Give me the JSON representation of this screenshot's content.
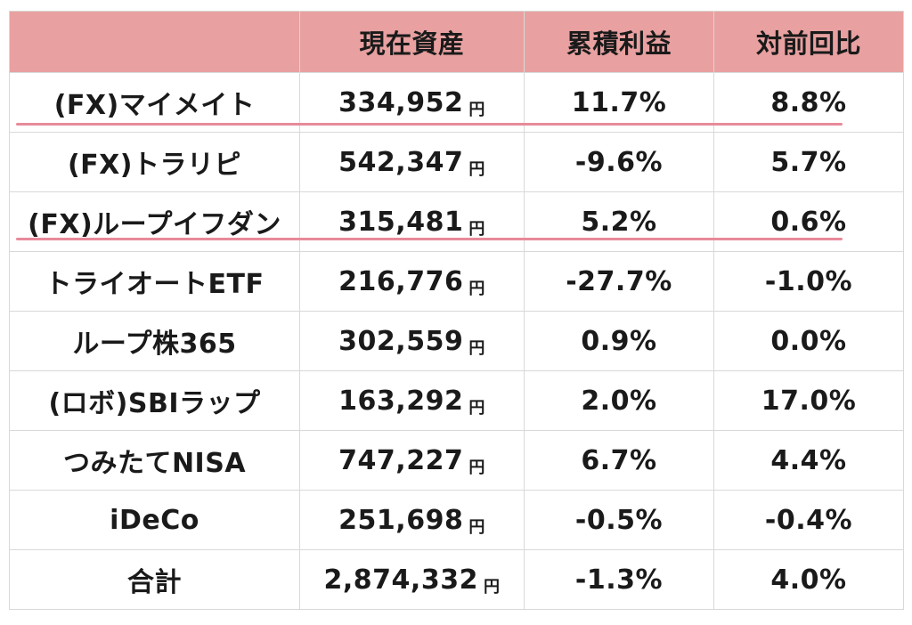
{
  "headers": {
    "name": "",
    "value": "現在資産",
    "profit": "累積利益",
    "ratio": "対前回比"
  },
  "yen": "円",
  "rows": [
    {
      "name": "(FX)マイメイト",
      "value": "334,952",
      "profit": "11.7%",
      "ratio": "8.8%",
      "highlight": true
    },
    {
      "name": "(FX)トラリピ",
      "value": "542,347",
      "profit": "-9.6%",
      "ratio": "5.7%"
    },
    {
      "name": "(FX)ループイフダン",
      "value": "315,481",
      "profit": "5.2%",
      "ratio": "0.6%",
      "highlight": true
    },
    {
      "name": "トライオートETF",
      "value": "216,776",
      "profit": "-27.7%",
      "ratio": "-1.0%"
    },
    {
      "name": "ループ株365",
      "value": "302,559",
      "profit": "0.9%",
      "ratio": "0.0%"
    },
    {
      "name": "(ロボ)SBIラップ",
      "value": "163,292",
      "profit": "2.0%",
      "ratio": "17.0%"
    },
    {
      "name": "つみたてNISA",
      "value": "747,227",
      "profit": "6.7%",
      "ratio": "4.4%"
    },
    {
      "name": "iDeCo",
      "value": "251,698",
      "profit": "-0.5%",
      "ratio": "-0.4%"
    },
    {
      "name": "合計",
      "value": "2,874,332",
      "profit": "-1.3%",
      "ratio": "4.0%"
    }
  ],
  "colors": {
    "header_bg": "#e8a0a0",
    "highlight_line": "#e88a9a",
    "grid": "#d9d9d9"
  }
}
